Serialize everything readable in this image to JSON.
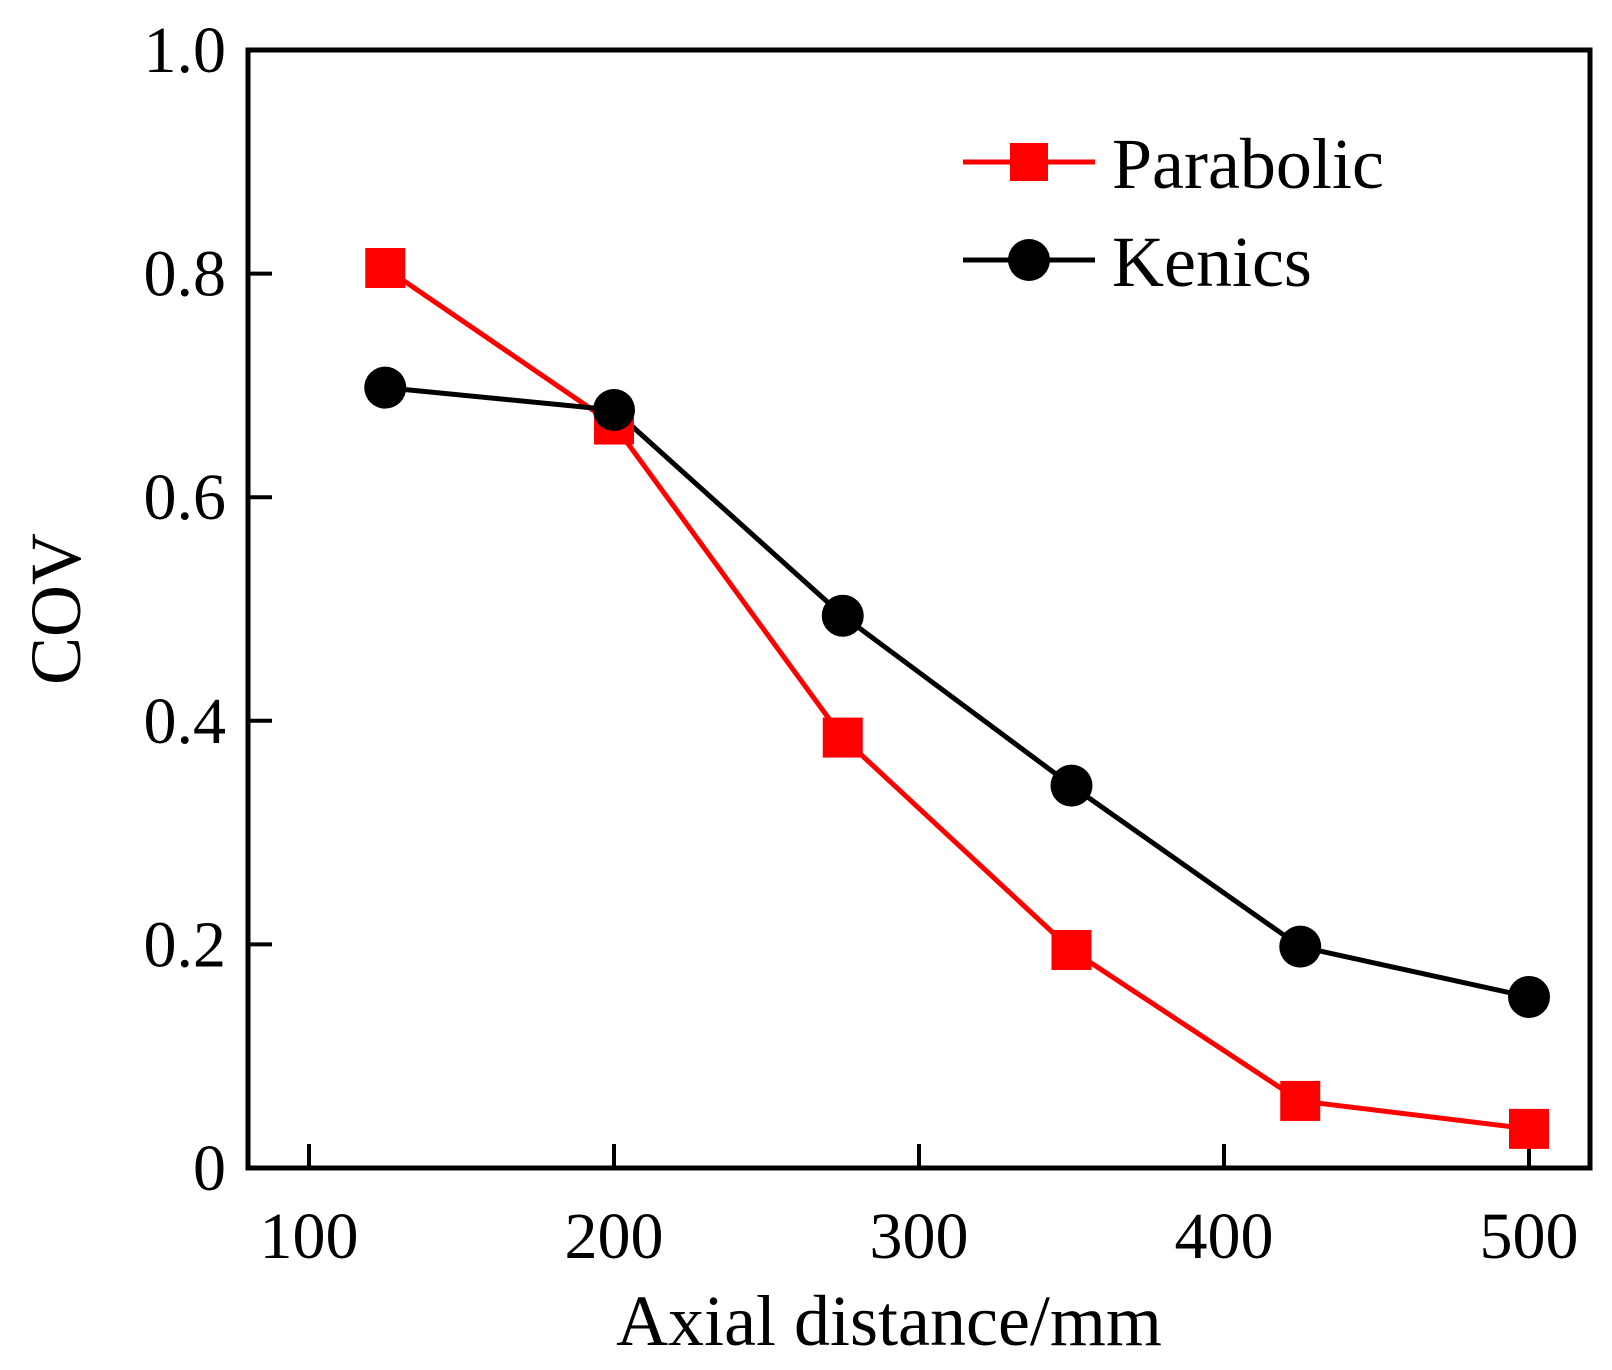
{
  "chart_data": {
    "type": "line",
    "title": "",
    "xlabel": "Axial distance/mm",
    "ylabel": "COV",
    "xlim": [
      80,
      520
    ],
    "ylim": [
      0,
      1.0
    ],
    "xticks": [
      100,
      200,
      300,
      400,
      500
    ],
    "xtick_labels": [
      "100",
      "200",
      "300",
      "400",
      "500"
    ],
    "yticks": [
      0,
      0.2,
      0.4,
      0.6,
      0.8,
      1.0
    ],
    "ytick_labels": [
      "0",
      "0.2",
      "0.4",
      "0.6",
      "0.8",
      "1.0"
    ],
    "grid": false,
    "legend_position": "top-right",
    "x": [
      125,
      200,
      275,
      350,
      425,
      500
    ],
    "series": [
      {
        "name": "Parabolic",
        "color": "#ff0000",
        "marker": "square",
        "values": [
          0.805,
          0.665,
          0.385,
          0.195,
          0.06,
          0.035
        ]
      },
      {
        "name": "Kenics",
        "color": "#000000",
        "marker": "circle",
        "values": [
          0.698,
          0.678,
          0.494,
          0.342,
          0.198,
          0.153
        ]
      }
    ]
  }
}
